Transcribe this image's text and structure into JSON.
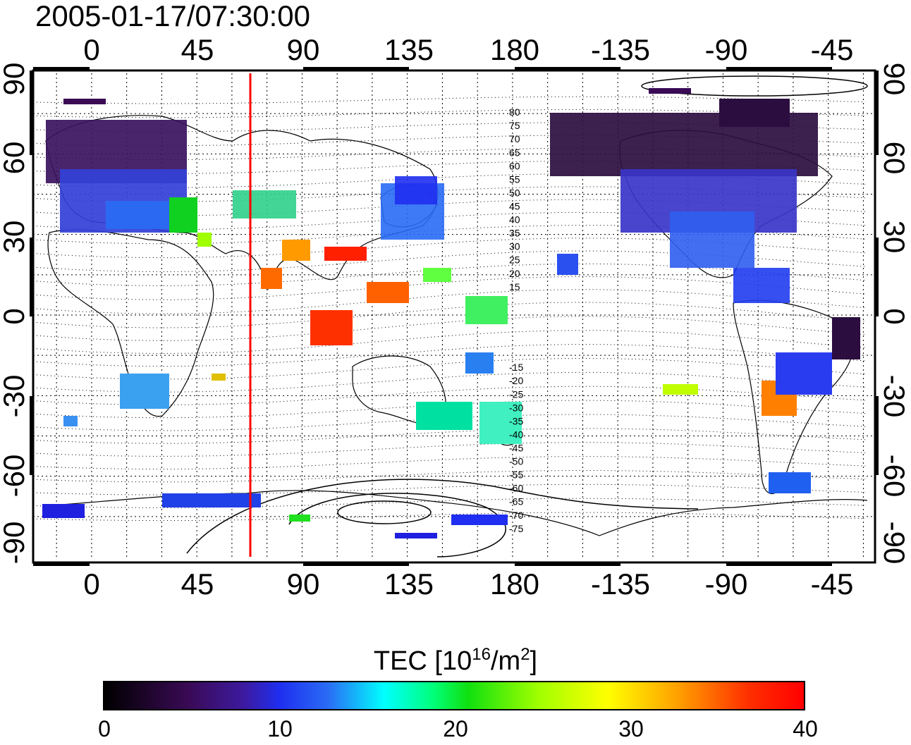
{
  "timestamp": "2005-01-17/07:30:00",
  "lon_ticks_top": [
    "0",
    "45",
    "90",
    "135",
    "180",
    "-135",
    "-90",
    "-45"
  ],
  "lon_ticks_bottom": [
    "0",
    "45",
    "90",
    "135",
    "180",
    "-135",
    "-90",
    "-45"
  ],
  "lat_ticks": [
    "90",
    "60",
    "30",
    "0",
    "-30",
    "-60",
    "-90"
  ],
  "contour_labels": [
    "80",
    "75",
    "70",
    "65",
    "60",
    "55",
    "50",
    "45",
    "40",
    "35",
    "30",
    "25",
    "20",
    "15",
    "-15",
    "-20",
    "-25",
    "-30",
    "-35",
    "-40",
    "-45",
    "-50",
    "-55",
    "-60",
    "-65",
    "-70",
    "-75"
  ],
  "colorbar": {
    "title_main": "TEC  [10",
    "title_exp": "16",
    "title_unit": "/m",
    "title_exp2": "2",
    "title_end": "]",
    "ticks": [
      "0",
      "10",
      "20",
      "30",
      "40"
    ],
    "range": [
      0,
      40
    ]
  },
  "marker_line": {
    "lon": 70,
    "color": "#ff0000"
  },
  "colors": {
    "frame": "#000000",
    "grid": "#000000",
    "marker": "#ff0000"
  }
}
